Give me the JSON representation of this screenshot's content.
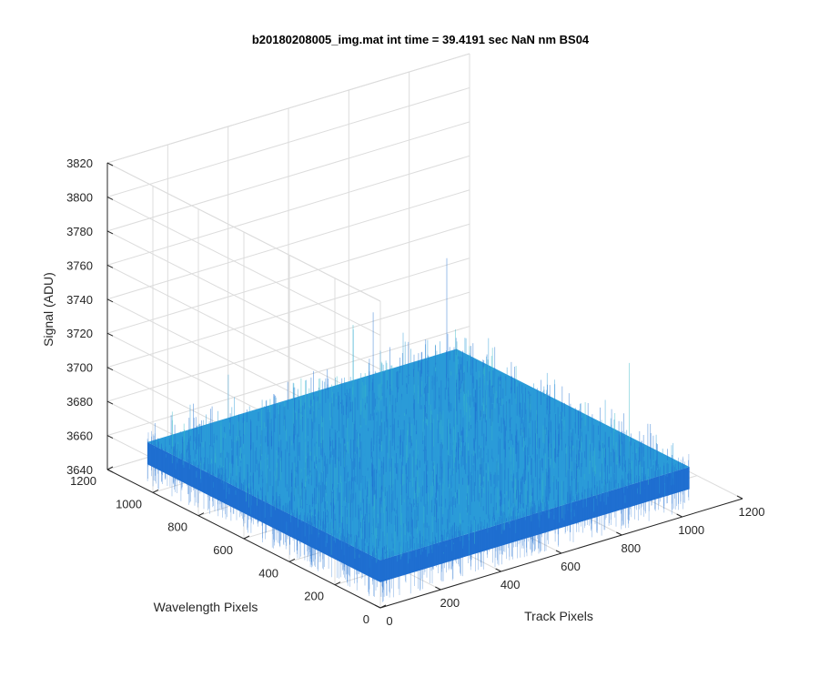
{
  "chart_data": {
    "type": "surface",
    "title": "b20180208005_img.mat int time = 39.4191 sec  NaN nm BS04",
    "xlabel": "Track Pixels",
    "ylabel": "Wavelength Pixels",
    "zlabel": "Signal (ADU)",
    "xlim": [
      0,
      1200
    ],
    "ylim": [
      0,
      1200
    ],
    "zlim": [
      3640,
      3820
    ],
    "xticks": [
      "0",
      "200",
      "400",
      "600",
      "800",
      "1000",
      "1200"
    ],
    "yticks": [
      "0",
      "200",
      "400",
      "600",
      "800",
      "1000",
      "1200"
    ],
    "zticks": [
      "3640",
      "3660",
      "3680",
      "3700",
      "3720",
      "3740",
      "3760",
      "3780",
      "3800",
      "3820"
    ],
    "data_extent": {
      "x": [
        0,
        1024
      ],
      "y": [
        0,
        1024
      ]
    },
    "surface": {
      "mean": 3668,
      "noise_min": 3655,
      "noise_max": 3690,
      "spike_max": 3775
    },
    "colormap": "parula",
    "colors": {
      "surface_base": "#1f6fd1",
      "surface_mid": "#2a9bd8",
      "surface_high": "#36b8c8"
    },
    "grid": true
  }
}
